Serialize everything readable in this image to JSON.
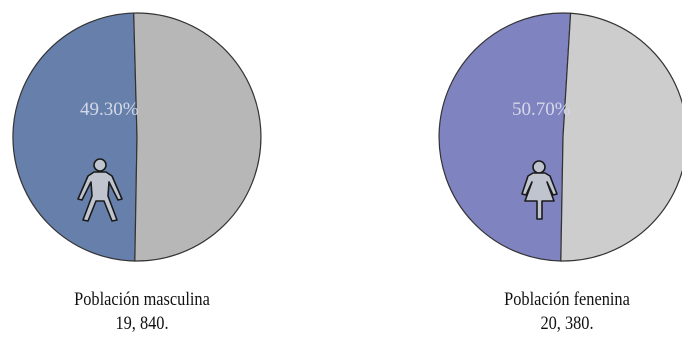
{
  "chart_data": [
    {
      "type": "pie",
      "slices": [
        {
          "label": "49.30%",
          "value": 49.3,
          "color": "#6680ab"
        },
        {
          "value": 50.7,
          "color": "#b7b7b7"
        }
      ],
      "icon": "male-figure-icon",
      "caption": {
        "line1": "Población masculina",
        "line2": "19, 840."
      }
    },
    {
      "type": "pie",
      "slices": [
        {
          "label": "50.70%",
          "value": 50.7,
          "color": "#7f83c0"
        },
        {
          "value": 49.3,
          "color": "#cdcdcd"
        }
      ],
      "icon": "female-figure-icon",
      "caption": {
        "line1": "Población fenenina",
        "line2": "20, 380."
      }
    }
  ],
  "colors": {
    "label_text": "#d4d8e8",
    "outline": "#333333",
    "icon_fill": "#bfc4cf",
    "icon_stroke": "#1a1a1a"
  }
}
